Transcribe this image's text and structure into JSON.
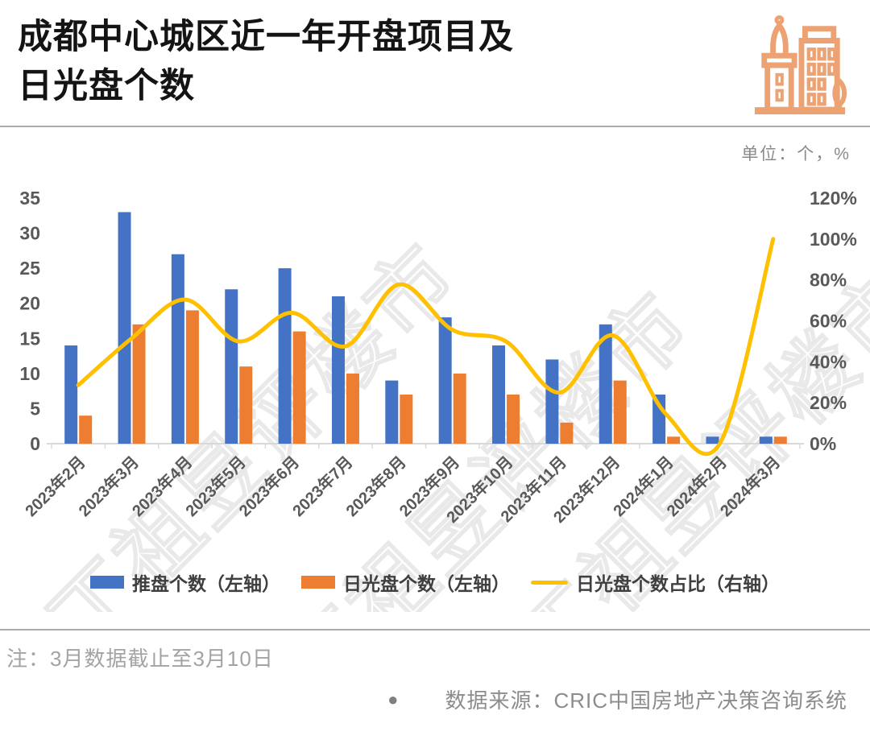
{
  "header": {
    "title_line1": "成都中心城区近一年开盘项目及",
    "title_line2": "日光盘个数"
  },
  "unit_label": "单位：个，%",
  "chart_data": {
    "type": "combo",
    "title": "成都中心城区近一年开盘项目及日光盘个数",
    "categories": [
      "2023年2月",
      "2023年3月",
      "2023年4月",
      "2023年5月",
      "2023年6月",
      "2023年7月",
      "2023年8月",
      "2023年9月",
      "2023年10月",
      "2023年11月",
      "2023年12月",
      "2024年1月",
      "2024年2月",
      "2024年3月"
    ],
    "series": [
      {
        "name": "推盘个数（左轴）",
        "type": "bar",
        "axis": "left",
        "color": "#4472C4",
        "values": [
          14,
          33,
          27,
          22,
          25,
          21,
          9,
          18,
          14,
          12,
          17,
          7,
          1,
          1
        ]
      },
      {
        "name": "日光盘个数（左轴）",
        "type": "bar",
        "axis": "left",
        "color": "#ED7D31",
        "values": [
          4,
          17,
          19,
          11,
          16,
          10,
          7,
          10,
          7,
          3,
          9,
          1,
          0,
          1
        ]
      },
      {
        "name": "日光盘个数占比（右轴）",
        "type": "line",
        "axis": "right",
        "color": "#FFC000",
        "values": [
          28.6,
          51.5,
          70.4,
          50.0,
          64.0,
          47.6,
          77.8,
          55.6,
          50.0,
          25.0,
          52.9,
          14.3,
          0.0,
          100.0
        ]
      }
    ],
    "left_axis": {
      "min": 0,
      "max": 35,
      "ticks": [
        0,
        5,
        10,
        15,
        20,
        25,
        30,
        35
      ],
      "suffix": ""
    },
    "right_axis": {
      "min": 0,
      "max": 120,
      "ticks": [
        0,
        20,
        40,
        60,
        80,
        100,
        120
      ],
      "suffix": "%"
    },
    "legend_position": "bottom",
    "grid": false
  },
  "watermark": {
    "text": "丁祖昱评楼市"
  },
  "note": "注：3月数据截止至3月10日",
  "source": {
    "bullet": "●",
    "text": "数据来源：CRIC中国房地产决策咨询系统"
  },
  "colors": {
    "bar_blue": "#4472C4",
    "bar_orange": "#ED7D31",
    "line_yellow": "#FFC000",
    "icon_orange": "#ECA273",
    "axis_text": "#595959",
    "axis_line": "#D9D9D9",
    "divider": "#ABABAB",
    "title_text": "#141414",
    "note_text": "#A3A3A3",
    "source_text": "#8C8C8C"
  }
}
